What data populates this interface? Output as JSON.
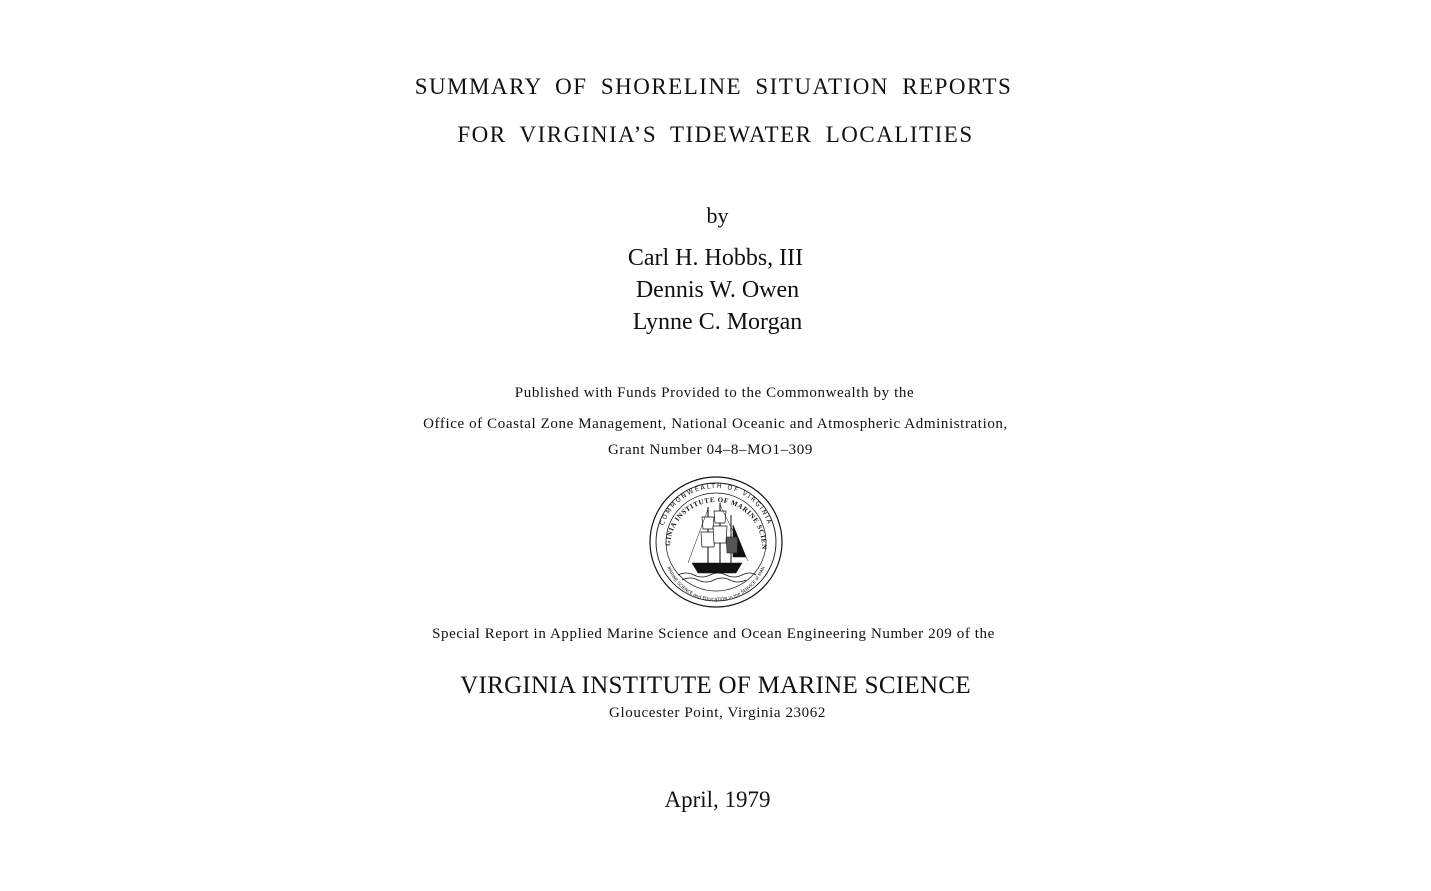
{
  "title": {
    "line1": "SUMMARY OF SHORELINE SITUATION REPORTS",
    "line2": "FOR VIRGINIA’S TIDEWATER LOCALITIES"
  },
  "byline": "by",
  "authors": [
    "Carl H. Hobbs, III",
    "Dennis W. Owen",
    "Lynne C. Morgan"
  ],
  "funding": {
    "line1": "Published with Funds Provided to the Commonwealth by the",
    "line2": "Office of Coastal Zone Management, National Oceanic and Atmospheric Administration,",
    "line3": "Grant Number 04–8–MO1–309"
  },
  "seal": {
    "outer_ring_text": "COMMONWEALTH OF VIRGINIA",
    "inner_ring_text": "VIRGINIA INSTITUTE OF MARINE SCIENCE",
    "bottom_ring_text": "MARINE SCIENCE and EDUCATION in the SERVICE of MAN",
    "icon": "sailing-ship-icon"
  },
  "report_line": "Special Report in Applied Marine Science and Ocean Engineering Number 209 of the",
  "institute": {
    "name": "VIRGINIA INSTITUTE OF MARINE SCIENCE",
    "address": "Gloucester Point, Virginia 23062"
  },
  "date": "April, 1979",
  "colors": {
    "background": "#ffffff",
    "ink": "#111111"
  }
}
